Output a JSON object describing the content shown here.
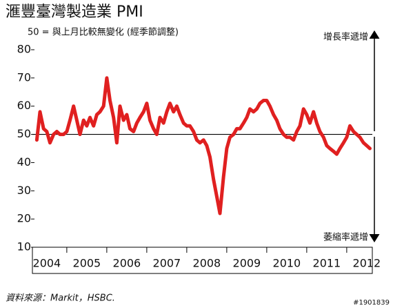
{
  "chart_data": {
    "type": "line",
    "title": "滙豐臺灣製造業 PMI",
    "subtitle": "50 = 與上月比較無變化 (經季節調整)",
    "annotations": [
      "增長率遞增",
      "萎縮率遞增"
    ],
    "source": "資料來源：Markit，HSBC.",
    "watermark": "#1901839",
    "reference_line": 50,
    "xlim": [
      2004.14,
      2012.64
    ],
    "xticks": [
      {
        "value": 2004.5,
        "label": "2004"
      },
      {
        "value": 2005.5,
        "label": "2005"
      },
      {
        "value": 2006.5,
        "label": "2006"
      },
      {
        "value": 2007.5,
        "label": "2007"
      },
      {
        "value": 2008.5,
        "label": "2008"
      },
      {
        "value": 2009.5,
        "label": "2009"
      },
      {
        "value": 2010.5,
        "label": "2010"
      },
      {
        "value": 2011.5,
        "label": "2011"
      },
      {
        "value": 2012.5,
        "label": "2012"
      }
    ],
    "ylim": [
      10,
      80
    ],
    "yticks": [
      10,
      20,
      30,
      40,
      50,
      60,
      70,
      80
    ],
    "x": [
      2004.25,
      2004.33,
      2004.42,
      2004.5,
      2004.58,
      2004.67,
      2004.75,
      2004.83,
      2004.92,
      2005,
      2005.08,
      2005.17,
      2005.25,
      2005.33,
      2005.42,
      2005.5,
      2005.58,
      2005.67,
      2005.75,
      2005.83,
      2005.92,
      2006,
      2006.08,
      2006.17,
      2006.25,
      2006.33,
      2006.42,
      2006.5,
      2006.58,
      2006.67,
      2006.75,
      2006.83,
      2006.92,
      2007,
      2007.08,
      2007.17,
      2007.25,
      2007.33,
      2007.42,
      2007.5,
      2007.58,
      2007.67,
      2007.75,
      2007.83,
      2007.92,
      2008,
      2008.08,
      2008.17,
      2008.25,
      2008.33,
      2008.42,
      2008.5,
      2008.58,
      2008.67,
      2008.75,
      2008.83,
      2008.92,
      2009,
      2009.08,
      2009.17,
      2009.25,
      2009.33,
      2009.42,
      2009.5,
      2009.58,
      2009.67,
      2009.75,
      2009.83,
      2009.92,
      2010,
      2010.08,
      2010.17,
      2010.25,
      2010.33,
      2010.42,
      2010.5,
      2010.58,
      2010.67,
      2010.75,
      2010.83,
      2010.92,
      2011,
      2011.08,
      2011.17,
      2011.25,
      2011.33,
      2011.42,
      2011.5,
      2011.58,
      2011.67,
      2011.75,
      2011.83,
      2011.92,
      2012,
      2012.08,
      2012.17,
      2012.25,
      2012.33,
      2012.42,
      2012.5,
      2012.58
    ],
    "series": [
      {
        "color": "#e02020",
        "values": [
          48,
          58,
          52,
          51,
          47,
          50,
          51,
          50,
          50,
          51,
          55,
          60,
          55,
          50,
          55,
          53,
          56,
          53,
          57,
          58,
          60,
          70,
          62,
          56,
          47,
          60,
          55,
          57,
          52,
          51,
          54,
          56,
          58,
          61,
          55,
          52,
          50,
          56,
          54,
          58,
          61,
          58,
          60,
          57,
          54,
          53,
          53,
          51,
          48,
          47,
          48,
          46,
          42,
          34,
          28,
          22,
          35,
          45,
          49,
          50,
          52,
          52,
          54,
          56,
          59,
          58,
          59,
          61,
          62,
          62,
          60,
          57,
          55,
          52,
          50,
          49,
          49,
          48,
          51,
          53,
          59,
          57,
          54,
          58,
          54,
          51,
          49,
          46,
          45,
          44,
          43,
          45,
          47,
          49,
          53,
          51,
          50,
          49,
          47,
          46,
          45
        ]
      }
    ]
  }
}
